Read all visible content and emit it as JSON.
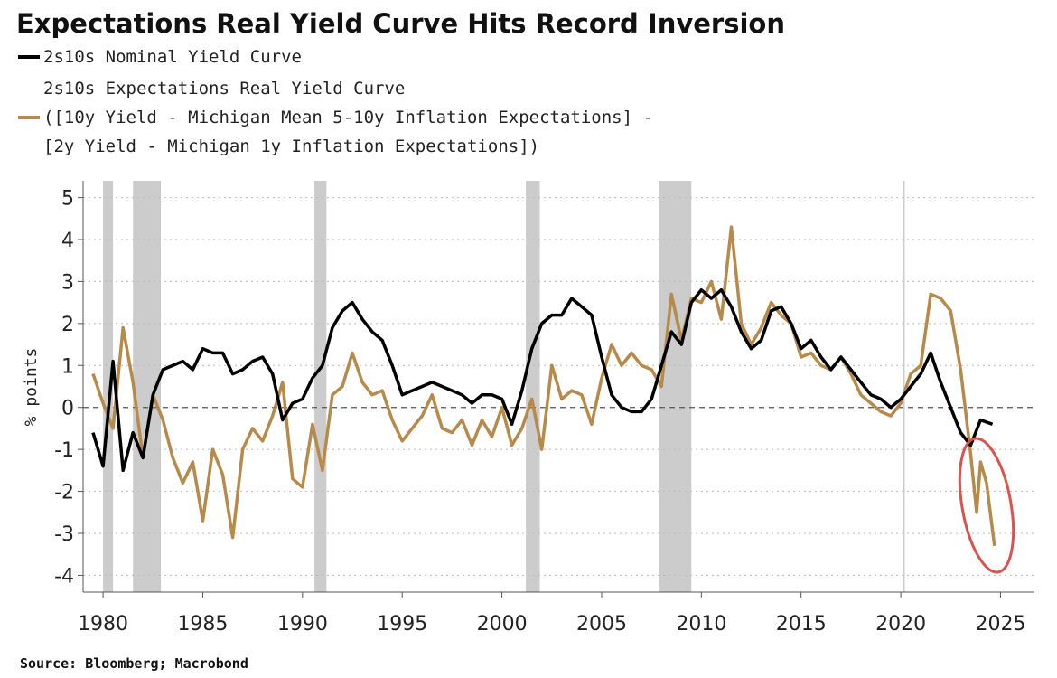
{
  "chart_data": {
    "type": "line",
    "title": "Expectations Real Yield Curve Hits Record Inversion",
    "ylabel": "% points",
    "source": "Source: Bloomberg; Macrobond",
    "xlim": [
      1979,
      2026.7
    ],
    "ylim": [
      -4.4,
      5.4
    ],
    "xticks": [
      1980,
      1985,
      1990,
      1995,
      2000,
      2005,
      2010,
      2015,
      2020,
      2025
    ],
    "yticks": [
      -4,
      -3,
      -2,
      -1,
      0,
      1,
      2,
      3,
      4,
      5
    ],
    "grid": true,
    "recession_color": "#cccccc",
    "recessions": [
      [
        1980.0,
        1980.5
      ],
      [
        1981.5,
        1982.9
      ],
      [
        1990.6,
        1991.2
      ],
      [
        2001.2,
        2001.9
      ],
      [
        2007.9,
        2009.5
      ],
      [
        2020.1,
        2020.2
      ]
    ],
    "series": [
      {
        "name": "2s10s Nominal Yield Curve",
        "color": "#000000",
        "x": [
          1979.5,
          1980,
          1980.5,
          1981,
          1981.5,
          1982,
          1982.5,
          1983,
          1983.5,
          1984,
          1984.5,
          1985,
          1985.5,
          1986,
          1986.5,
          1987,
          1987.5,
          1988,
          1988.5,
          1989,
          1989.5,
          1990,
          1990.5,
          1991,
          1991.5,
          1992,
          1992.5,
          1993,
          1993.5,
          1994,
          1994.5,
          1995,
          1995.5,
          1996,
          1996.5,
          1997,
          1997.5,
          1998,
          1998.5,
          1999,
          1999.5,
          2000,
          2000.5,
          2001,
          2001.5,
          2002,
          2002.5,
          2003,
          2003.5,
          2004,
          2004.5,
          2005,
          2005.5,
          2006,
          2006.5,
          2007,
          2007.5,
          2008,
          2008.5,
          2009,
          2009.5,
          2010,
          2010.5,
          2011,
          2011.5,
          2012,
          2012.5,
          2013,
          2013.5,
          2014,
          2014.5,
          2015,
          2015.5,
          2016,
          2016.5,
          2017,
          2017.5,
          2018,
          2018.5,
          2019,
          2019.5,
          2020,
          2020.5,
          2021,
          2021.5,
          2022,
          2022.5,
          2023,
          2023.5,
          2024,
          2024.6
        ],
        "values": [
          -0.6,
          -1.4,
          1.1,
          -1.5,
          -0.6,
          -1.2,
          0.3,
          0.9,
          1.0,
          1.1,
          0.9,
          1.4,
          1.3,
          1.3,
          0.8,
          0.9,
          1.1,
          1.2,
          0.8,
          -0.3,
          0.1,
          0.2,
          0.7,
          1.0,
          1.9,
          2.3,
          2.5,
          2.1,
          1.8,
          1.6,
          1.0,
          0.3,
          0.4,
          0.5,
          0.6,
          0.5,
          0.4,
          0.3,
          0.1,
          0.3,
          0.3,
          0.2,
          -0.4,
          0.4,
          1.4,
          2.0,
          2.2,
          2.2,
          2.6,
          2.4,
          2.2,
          1.2,
          0.3,
          0.0,
          -0.1,
          -0.1,
          0.2,
          1.0,
          1.8,
          1.5,
          2.5,
          2.8,
          2.6,
          2.8,
          2.4,
          1.8,
          1.4,
          1.6,
          2.3,
          2.4,
          2.0,
          1.4,
          1.6,
          1.2,
          0.9,
          1.2,
          0.9,
          0.6,
          0.3,
          0.2,
          0.0,
          0.2,
          0.5,
          0.8,
          1.3,
          0.6,
          0.0,
          -0.6,
          -0.9,
          -0.3,
          -0.4
        ]
      },
      {
        "name": "2s10s Expectations Real Yield Curve\n([10y Yield - Michigan Mean 5-10y Inflation Expectations] -\n[2y Yield  - Michigan 1y Inflation Expectations])",
        "color": "#b88a4a",
        "x": [
          1979.5,
          1980,
          1980.5,
          1981,
          1981.5,
          1982,
          1982.5,
          1983,
          1983.5,
          1984,
          1984.5,
          1985,
          1985.5,
          1986,
          1986.5,
          1987,
          1987.5,
          1988,
          1988.5,
          1989,
          1989.5,
          1990,
          1990.5,
          1991,
          1991.5,
          1992,
          1992.5,
          1993,
          1993.5,
          1994,
          1994.5,
          1995,
          1995.5,
          1996,
          1996.5,
          1997,
          1997.5,
          1998,
          1998.5,
          1999,
          1999.5,
          2000,
          2000.5,
          2001,
          2001.5,
          2002,
          2002.5,
          2003,
          2003.5,
          2004,
          2004.5,
          2005,
          2005.5,
          2006,
          2006.5,
          2007,
          2007.5,
          2008,
          2008.5,
          2009,
          2009.5,
          2010,
          2010.5,
          2011,
          2011.5,
          2012,
          2012.5,
          2013,
          2013.5,
          2014,
          2014.5,
          2015,
          2015.5,
          2016,
          2016.5,
          2017,
          2017.5,
          2018,
          2018.5,
          2019,
          2019.5,
          2020,
          2020.5,
          2021,
          2021.5,
          2022,
          2022.5,
          2023,
          2023.5,
          2023.8,
          2024,
          2024.3,
          2024.7
        ],
        "values": [
          0.8,
          0.1,
          -0.5,
          1.9,
          0.6,
          -1.2,
          0.3,
          -0.3,
          -1.2,
          -1.8,
          -1.3,
          -2.7,
          -1.0,
          -1.6,
          -3.1,
          -1.0,
          -0.5,
          -0.8,
          -0.2,
          0.6,
          -1.7,
          -1.9,
          -0.4,
          -1.5,
          0.3,
          0.5,
          1.3,
          0.6,
          0.3,
          0.4,
          -0.3,
          -0.8,
          -0.5,
          -0.2,
          0.3,
          -0.5,
          -0.6,
          -0.3,
          -0.9,
          -0.3,
          -0.7,
          0.0,
          -0.9,
          -0.5,
          0.2,
          -1.0,
          1.0,
          0.2,
          0.4,
          0.3,
          -0.4,
          0.7,
          1.5,
          1.0,
          1.3,
          1.0,
          0.9,
          0.5,
          2.7,
          1.6,
          2.6,
          2.5,
          3.0,
          2.1,
          4.3,
          2.0,
          1.5,
          1.9,
          2.5,
          2.2,
          2.0,
          1.2,
          1.3,
          1.0,
          0.9,
          1.2,
          0.8,
          0.3,
          0.1,
          -0.1,
          -0.2,
          0.1,
          0.8,
          1.0,
          2.7,
          2.6,
          2.3,
          0.9,
          -1.1,
          -2.5,
          -1.3,
          -1.8,
          -3.3
        ]
      }
    ]
  }
}
